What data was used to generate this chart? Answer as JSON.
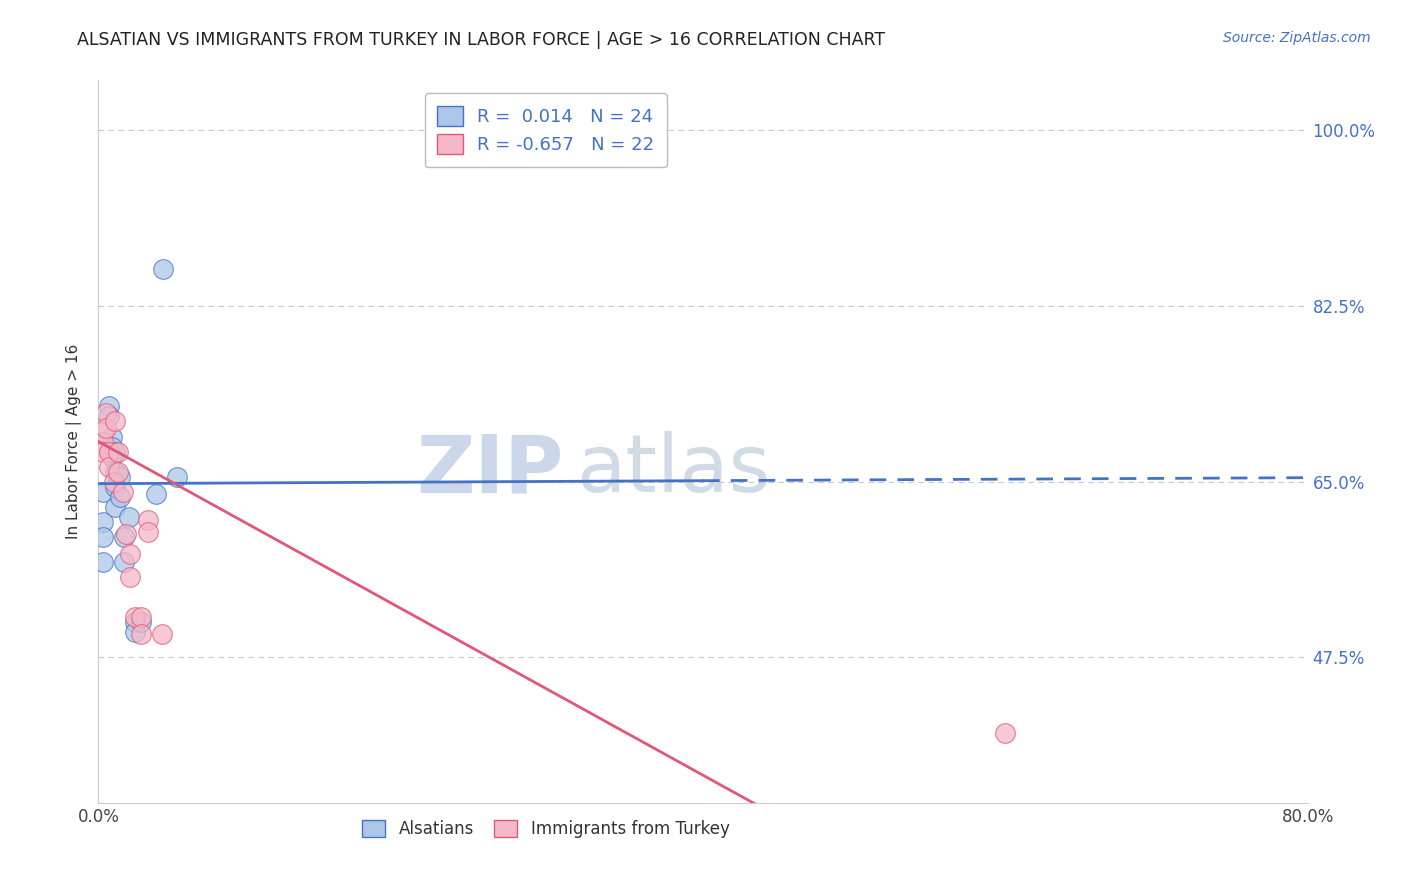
{
  "title": "ALSATIAN VS IMMIGRANTS FROM TURKEY IN LABOR FORCE | AGE > 16 CORRELATION CHART",
  "source": "Source: ZipAtlas.com",
  "ylabel": "In Labor Force | Age > 16",
  "legend_labels": [
    "Alsatians",
    "Immigrants from Turkey"
  ],
  "r_values": [
    0.014,
    -0.657
  ],
  "n_values": [
    24,
    22
  ],
  "xlim": [
    0.0,
    0.8
  ],
  "ylim": [
    0.33,
    1.05
  ],
  "yticks": [
    0.475,
    0.65,
    0.825,
    1.0
  ],
  "ytick_labels": [
    "47.5%",
    "65.0%",
    "82.5%",
    "100.0%"
  ],
  "xticks": [
    0.0,
    0.1,
    0.2,
    0.3,
    0.4,
    0.5,
    0.6,
    0.7,
    0.8
  ],
  "xtick_labels": [
    "0.0%",
    "",
    "",
    "",
    "",
    "",
    "",
    "",
    "80.0%"
  ],
  "blue_color": "#adc6e8",
  "pink_color": "#f5b8c8",
  "blue_line_color": "#4472c4",
  "pink_line_color": "#e05878",
  "blue_scatter": [
    [
      0.003,
      0.64
    ],
    [
      0.003,
      0.61
    ],
    [
      0.003,
      0.595
    ],
    [
      0.003,
      0.57
    ],
    [
      0.007,
      0.725
    ],
    [
      0.007,
      0.715
    ],
    [
      0.009,
      0.695
    ],
    [
      0.009,
      0.685
    ],
    [
      0.009,
      0.675
    ],
    [
      0.011,
      0.68
    ],
    [
      0.011,
      0.66
    ],
    [
      0.011,
      0.645
    ],
    [
      0.011,
      0.625
    ],
    [
      0.014,
      0.655
    ],
    [
      0.014,
      0.635
    ],
    [
      0.017,
      0.595
    ],
    [
      0.017,
      0.57
    ],
    [
      0.02,
      0.615
    ],
    [
      0.024,
      0.51
    ],
    [
      0.024,
      0.5
    ],
    [
      0.028,
      0.51
    ],
    [
      0.038,
      0.638
    ],
    [
      0.043,
      0.862
    ],
    [
      0.052,
      0.655
    ]
  ],
  "pink_scatter": [
    [
      0.003,
      0.7
    ],
    [
      0.003,
      0.69
    ],
    [
      0.003,
      0.68
    ],
    [
      0.005,
      0.718
    ],
    [
      0.005,
      0.703
    ],
    [
      0.007,
      0.68
    ],
    [
      0.007,
      0.665
    ],
    [
      0.01,
      0.65
    ],
    [
      0.011,
      0.71
    ],
    [
      0.013,
      0.68
    ],
    [
      0.013,
      0.66
    ],
    [
      0.016,
      0.64
    ],
    [
      0.018,
      0.598
    ],
    [
      0.021,
      0.578
    ],
    [
      0.021,
      0.555
    ],
    [
      0.024,
      0.515
    ],
    [
      0.028,
      0.515
    ],
    [
      0.028,
      0.498
    ],
    [
      0.033,
      0.612
    ],
    [
      0.033,
      0.6
    ],
    [
      0.042,
      0.498
    ],
    [
      0.6,
      0.4
    ]
  ],
  "blue_line_solid": [
    [
      0.0,
      0.648
    ],
    [
      0.4,
      0.651
    ]
  ],
  "blue_line_dashed": [
    [
      0.4,
      0.651
    ],
    [
      0.8,
      0.654
    ]
  ],
  "pink_line": [
    [
      0.0,
      0.69
    ],
    [
      0.8,
      0.025
    ]
  ],
  "watermark_zip": "ZIP",
  "watermark_atlas": "atlas",
  "background_color": "#ffffff",
  "grid_color": "#c8c8c8",
  "watermark_color": "#ccd8ea"
}
